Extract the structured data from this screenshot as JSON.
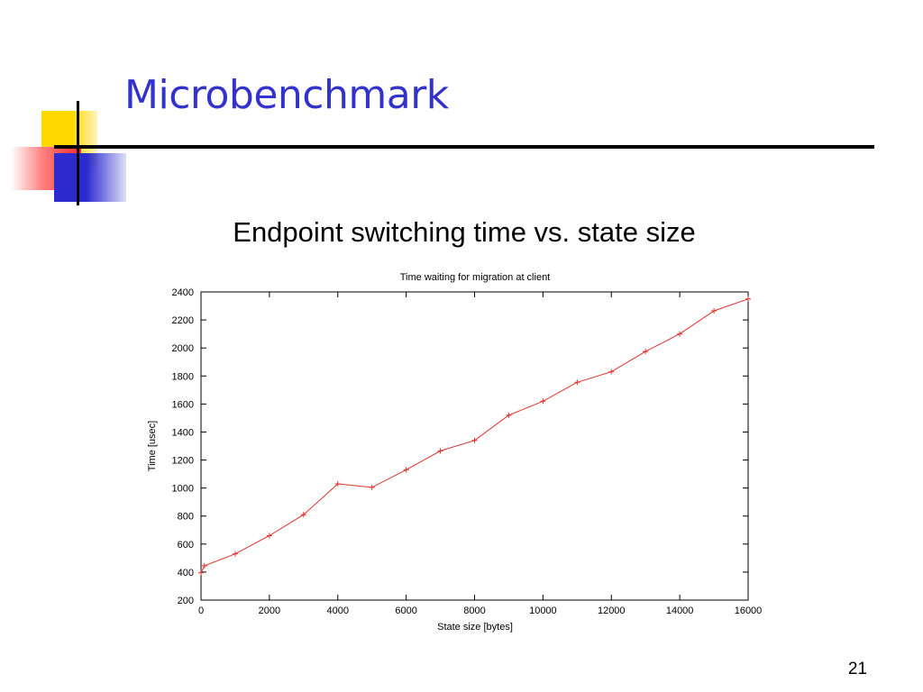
{
  "slide": {
    "title": "Microbenchmark",
    "subtitle": "Endpoint switching time vs. state size",
    "page_number": "21"
  },
  "colors": {
    "title": "#3333cc",
    "series_line": "#e0302a",
    "deco_yellow": "#ffd800",
    "deco_red": "#ff2a2a",
    "deco_blue": "#2b2bd0"
  },
  "chart_data": {
    "type": "line",
    "title": "Time waiting for migration at client",
    "xlabel": "State size [bytes]",
    "ylabel": "Time [usec]",
    "xlim": [
      0,
      16000
    ],
    "ylim": [
      200,
      2400
    ],
    "xticks": [
      0,
      2000,
      4000,
      6000,
      8000,
      10000,
      12000,
      14000,
      16000
    ],
    "yticks": [
      200,
      400,
      600,
      800,
      1000,
      1200,
      1400,
      1600,
      1800,
      2000,
      2200,
      2400
    ],
    "grid": false,
    "marker": "+",
    "series": [
      {
        "x": [
          0,
          100,
          1000,
          2000,
          3000,
          4000,
          5000,
          6000,
          7000,
          8000,
          9000,
          10000,
          11000,
          12000,
          13000,
          14000,
          15000,
          16000
        ],
        "y": [
          395,
          445,
          530,
          660,
          810,
          1030,
          1005,
          1130,
          1265,
          1340,
          1520,
          1620,
          1755,
          1830,
          1975,
          2100,
          2265,
          2350
        ]
      }
    ]
  }
}
